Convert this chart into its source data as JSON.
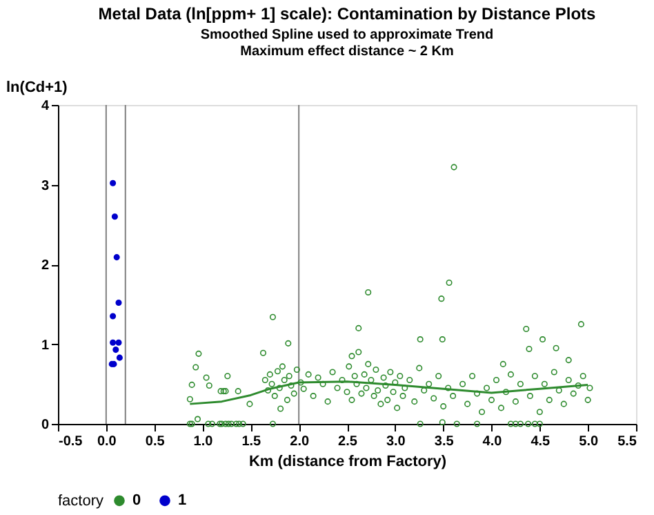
{
  "chart_data": {
    "type": "scatter",
    "title": "Metal Data (ln[ppm+ 1] scale):  Contamination by Distance Plots",
    "subtitle": "Smoothed Spline used to approximate Trend\nMaximum effect distance ~ 2 Km",
    "xlabel": "Km (distance from Factory)",
    "ylabel": "ln(Cd+1)",
    "legend_title": "factory",
    "xlim": [
      -0.5,
      5.5
    ],
    "xticks": [
      -0.5,
      {
        "value": 0,
        "label": "0.0"
      },
      0.5,
      {
        "value": 1,
        "label": "1.0"
      },
      1.5,
      {
        "value": 2,
        "label": "2.0"
      },
      2.5,
      {
        "value": 3,
        "label": "3.0"
      },
      3.5,
      {
        "value": 4,
        "label": "4.0"
      },
      4.5,
      {
        "value": 5,
        "label": "5.0"
      },
      5.5
    ],
    "ylim": [
      0,
      4
    ],
    "yticks": [
      0,
      1,
      2,
      3,
      4
    ],
    "grid": false,
    "legend": "bottom",
    "marker": "circle",
    "ref_lines": [
      {
        "axis": "x",
        "value": 0,
        "color": "#808080"
      },
      {
        "axis": "x",
        "value": 0.2,
        "color": "#808080"
      },
      {
        "axis": "x",
        "value": 2.0,
        "color": "#808080"
      }
    ],
    "series": [
      {
        "name": "0",
        "color": "#2e8b2e",
        "type": "scatter",
        "x": [
          0.96,
          0.93,
          1.04,
          1.07,
          0.89,
          0.87,
          0.95,
          1.19,
          1.22,
          1.24,
          1.37,
          1.26,
          1.49,
          1.63,
          1.89,
          1.73,
          1.81,
          0.87,
          0.89,
          1.06,
          1.1,
          1.18,
          1.2,
          1.24,
          1.27,
          1.3,
          1.35,
          1.38,
          1.42,
          1.73,
          1.65,
          1.68,
          1.7,
          1.72,
          1.75,
          1.78,
          1.8,
          1.83,
          1.85,
          1.88,
          1.9,
          1.92,
          1.95,
          1.98,
          2.02,
          2.05,
          2.1,
          2.15,
          2.2,
          2.25,
          2.3,
          2.35,
          2.4,
          2.45,
          2.5,
          2.52,
          2.55,
          2.58,
          2.6,
          2.62,
          2.65,
          2.68,
          2.7,
          2.72,
          2.75,
          2.78,
          2.8,
          2.82,
          2.85,
          2.88,
          2.9,
          2.92,
          2.95,
          2.98,
          3.0,
          3.02,
          3.05,
          3.08,
          3.1,
          3.15,
          3.2,
          3.25,
          3.3,
          3.35,
          3.4,
          3.45,
          3.5,
          3.55,
          3.61,
          3.56,
          3.48,
          3.26,
          3.49,
          3.6,
          3.7,
          3.75,
          3.8,
          3.85,
          3.9,
          3.95,
          4.0,
          4.05,
          4.1,
          4.15,
          4.2,
          4.25,
          4.3,
          4.36,
          4.39,
          4.53,
          4.67,
          4.93,
          4.4,
          4.45,
          4.5,
          4.55,
          4.6,
          4.65,
          4.7,
          4.75,
          4.8,
          4.85,
          4.9,
          4.95,
          5.0,
          5.02,
          3.64,
          3.85,
          4.2,
          4.25,
          4.3,
          4.38,
          4.45,
          4.5,
          3.49,
          3.26,
          2.72,
          2.55,
          2.62,
          4.12,
          4.8
        ],
        "values": [
          0.88,
          0.71,
          0.58,
          0.48,
          0.49,
          0.31,
          0.06,
          0.41,
          0.41,
          0.41,
          0.41,
          0.6,
          0.25,
          0.89,
          1.01,
          1.34,
          0.19,
          0.0,
          0.0,
          0.0,
          0.0,
          0.0,
          0.0,
          0.0,
          0.0,
          0.0,
          0.0,
          0.0,
          0.0,
          0.0,
          0.55,
          0.42,
          0.62,
          0.5,
          0.35,
          0.66,
          0.45,
          0.72,
          0.55,
          0.3,
          0.6,
          0.48,
          0.38,
          0.68,
          0.52,
          0.44,
          0.62,
          0.35,
          0.58,
          0.5,
          0.28,
          0.65,
          0.45,
          0.55,
          0.4,
          0.72,
          0.3,
          0.6,
          0.5,
          1.2,
          0.38,
          0.62,
          0.45,
          0.75,
          0.55,
          0.35,
          0.68,
          0.42,
          0.25,
          0.58,
          0.48,
          0.3,
          0.65,
          0.4,
          0.52,
          0.2,
          0.6,
          0.35,
          0.45,
          0.55,
          0.28,
          0.7,
          0.42,
          0.5,
          0.32,
          0.6,
          0.22,
          0.45,
          3.22,
          1.77,
          1.57,
          1.06,
          1.06,
          0.35,
          0.5,
          0.25,
          0.6,
          0.38,
          0.15,
          0.45,
          0.3,
          0.55,
          0.2,
          0.4,
          0.62,
          0.28,
          0.5,
          1.19,
          0.94,
          1.06,
          0.95,
          1.25,
          0.35,
          0.6,
          0.15,
          0.5,
          0.3,
          0.65,
          0.42,
          0.25,
          0.55,
          0.38,
          0.48,
          0.6,
          0.3,
          0.45,
          0.0,
          0.0,
          0.0,
          0.0,
          0.0,
          0.0,
          0.0,
          0.0,
          0.02,
          0.0,
          1.65,
          0.85,
          0.9,
          0.75,
          0.8
        ]
      },
      {
        "name": "1",
        "color": "#0000cc",
        "type": "scatter",
        "x": [
          0.07,
          0.09,
          0.11,
          0.13,
          0.07,
          0.07,
          0.13,
          0.1,
          0.14,
          0.06,
          0.08
        ],
        "values": [
          3.02,
          2.6,
          2.09,
          1.52,
          1.35,
          1.02,
          1.02,
          0.93,
          0.83,
          0.75,
          0.75
        ]
      },
      {
        "color": "#2e8b2e",
        "type": "line",
        "marker": "none",
        "line_style": "solid",
        "x": [
          0.87,
          1.2,
          1.5,
          1.7,
          2.0,
          2.5,
          3.0,
          3.5,
          4.0,
          4.5,
          5.0
        ],
        "values": [
          0.25,
          0.28,
          0.36,
          0.44,
          0.52,
          0.53,
          0.49,
          0.44,
          0.39,
          0.44,
          0.49
        ]
      }
    ]
  }
}
